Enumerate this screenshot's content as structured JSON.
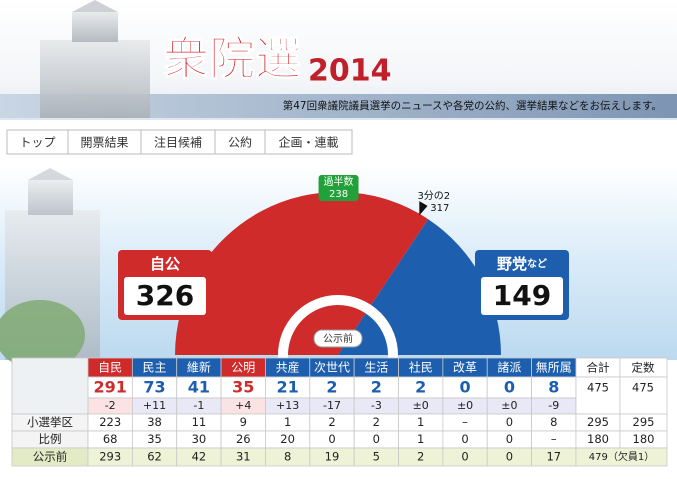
{
  "header": {
    "title": "衆院選",
    "year": "2014",
    "subtitle": "第47回衆議院議員選挙のニュースや各党の公約、選挙結果などをお伝えします。"
  },
  "nav": [
    "トップ",
    "開票結果",
    "注目候補",
    "公約",
    "企画・連載"
  ],
  "majority": {
    "label": "過半数",
    "value": 238
  },
  "two_thirds": {
    "label": "3分の2",
    "value": 317
  },
  "ruling": {
    "label": "自公",
    "seats": 326,
    "color": "#cf2b2b"
  },
  "opposition": {
    "label": "野党",
    "suffix": "など",
    "seats": 149,
    "color": "#1d5fae"
  },
  "before_label": "公示前",
  "table": {
    "parties": [
      {
        "name": "自民",
        "side": "ruling",
        "seats": 291,
        "change": "-2"
      },
      {
        "name": "民主",
        "side": "opposition",
        "seats": 73,
        "change": "+11"
      },
      {
        "name": "維新",
        "side": "opposition",
        "seats": 41,
        "change": "-1"
      },
      {
        "name": "公明",
        "side": "ruling",
        "seats": 35,
        "change": "+4"
      },
      {
        "name": "共産",
        "side": "opposition",
        "seats": 21,
        "change": "+13"
      },
      {
        "name": "次世代",
        "side": "opposition",
        "seats": 2,
        "change": "-17"
      },
      {
        "name": "生活",
        "side": "opposition",
        "seats": 2,
        "change": "-3"
      },
      {
        "name": "社民",
        "side": "opposition",
        "seats": 2,
        "change": "±0"
      },
      {
        "name": "改革",
        "side": "opposition",
        "seats": 0,
        "change": "±0"
      },
      {
        "name": "諸派",
        "side": "opposition",
        "seats": 0,
        "change": "±0"
      },
      {
        "name": "無所属",
        "side": "opposition",
        "seats": 8,
        "change": "-9"
      }
    ],
    "total": {
      "label": "合計",
      "value": 475
    },
    "capacity": {
      "label": "定数",
      "value": 475
    },
    "rows": [
      {
        "label": "小選挙区",
        "cells": [
          "223",
          "38",
          "11",
          "9",
          "1",
          "2",
          "2",
          "1",
          "–",
          "0",
          "8",
          "295",
          "295"
        ]
      },
      {
        "label": "比例",
        "cells": [
          "68",
          "35",
          "30",
          "26",
          "20",
          "0",
          "0",
          "1",
          "0",
          "0",
          "–",
          "180",
          "180"
        ]
      },
      {
        "label": "公示前",
        "cells": [
          "293",
          "62",
          "42",
          "31",
          "8",
          "19",
          "5",
          "2",
          "0",
          "0",
          "17",
          "479（欠員1）"
        ]
      }
    ]
  }
}
